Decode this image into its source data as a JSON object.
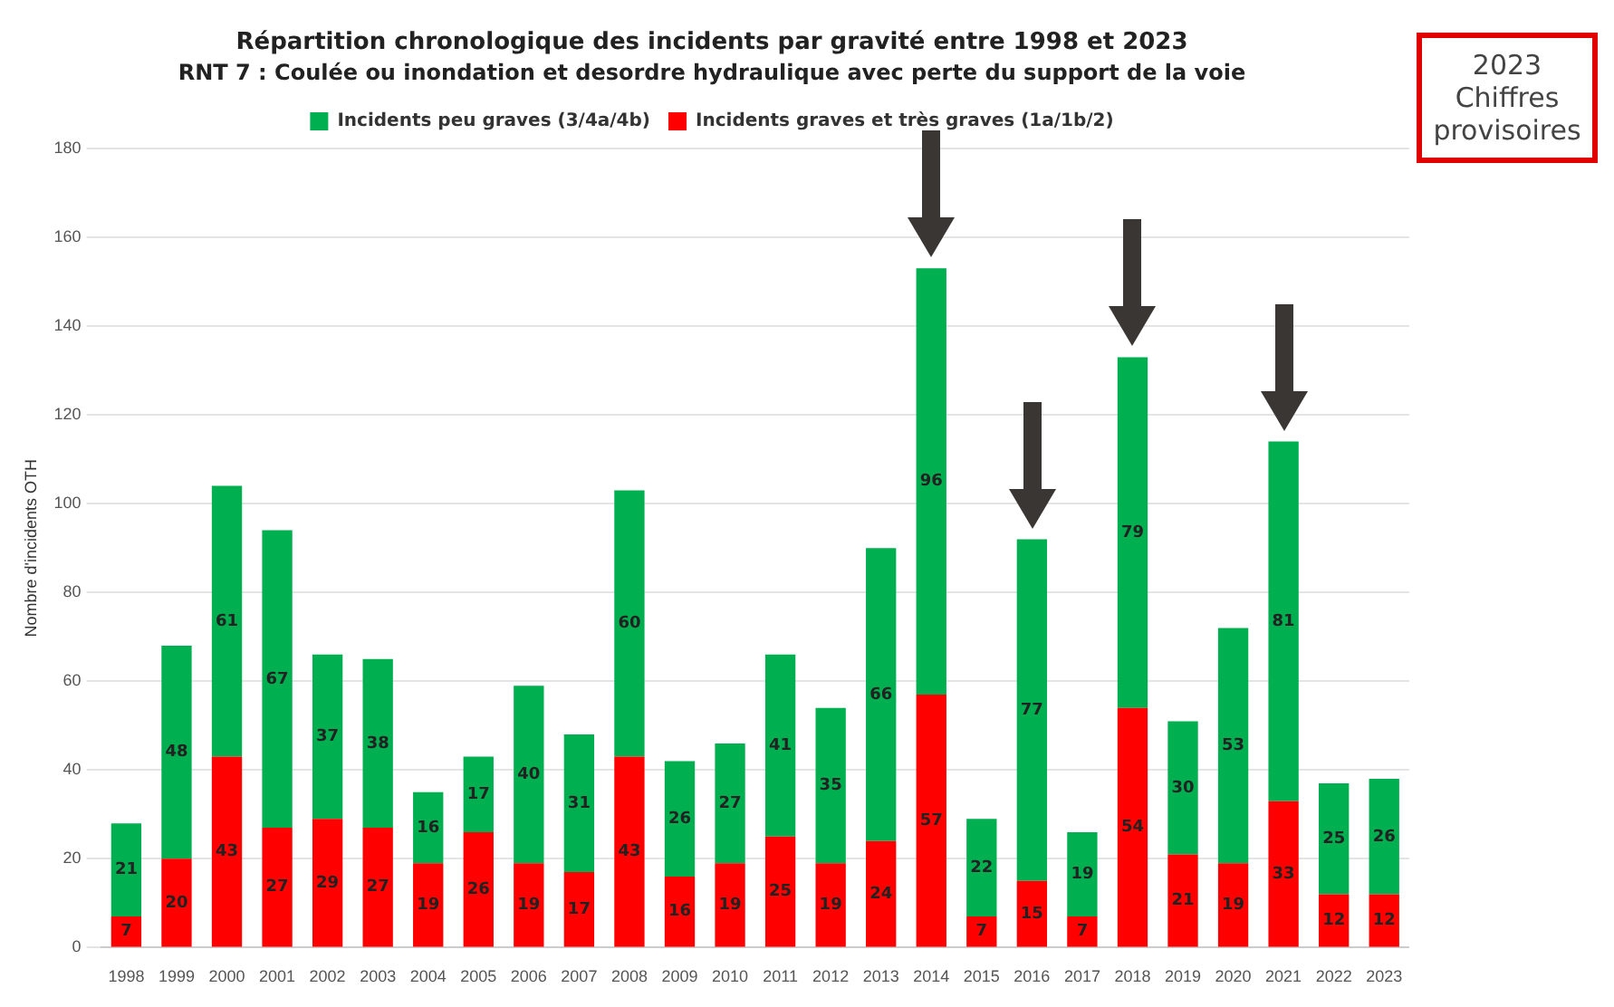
{
  "chart_data": {
    "type": "bar",
    "stacked": true,
    "title": "Répartition chronologique des incidents par gravité entre 1998 et 2023",
    "subtitle": "RNT 7 : Coulée ou inondation et desordre hydraulique avec perte du support de la voie",
    "ylabel": "Nombre d'incidents OTH",
    "categories": [
      "1998",
      "1999",
      "2000",
      "2001",
      "2002",
      "2003",
      "2004",
      "2005",
      "2006",
      "2007",
      "2008",
      "2009",
      "2010",
      "2011",
      "2012",
      "2013",
      "2014",
      "2015",
      "2016",
      "2017",
      "2018",
      "2019",
      "2020",
      "2021",
      "2022",
      "2023"
    ],
    "series": [
      {
        "name": "Incidents graves et très graves (1a/1b/2)",
        "color": "#ff0000",
        "values": [
          7,
          20,
          43,
          27,
          29,
          27,
          19,
          26,
          19,
          17,
          43,
          16,
          19,
          25,
          19,
          24,
          57,
          7,
          15,
          7,
          54,
          21,
          19,
          33,
          12,
          12
        ]
      },
      {
        "name": "Incidents peu graves (3/4a/4b)",
        "color": "#00b050",
        "values": [
          21,
          48,
          61,
          67,
          37,
          38,
          16,
          17,
          40,
          31,
          60,
          26,
          27,
          41,
          35,
          66,
          96,
          22,
          77,
          19,
          79,
          30,
          53,
          81,
          25,
          26
        ]
      }
    ],
    "ylim": [
      0,
      180
    ],
    "yticks": [
      0,
      20,
      40,
      60,
      80,
      100,
      120,
      140,
      160,
      180
    ],
    "grid": "y",
    "legend": "top",
    "data_labels": true,
    "annotations": [
      "2023 Chiffres provisoires"
    ]
  }
}
